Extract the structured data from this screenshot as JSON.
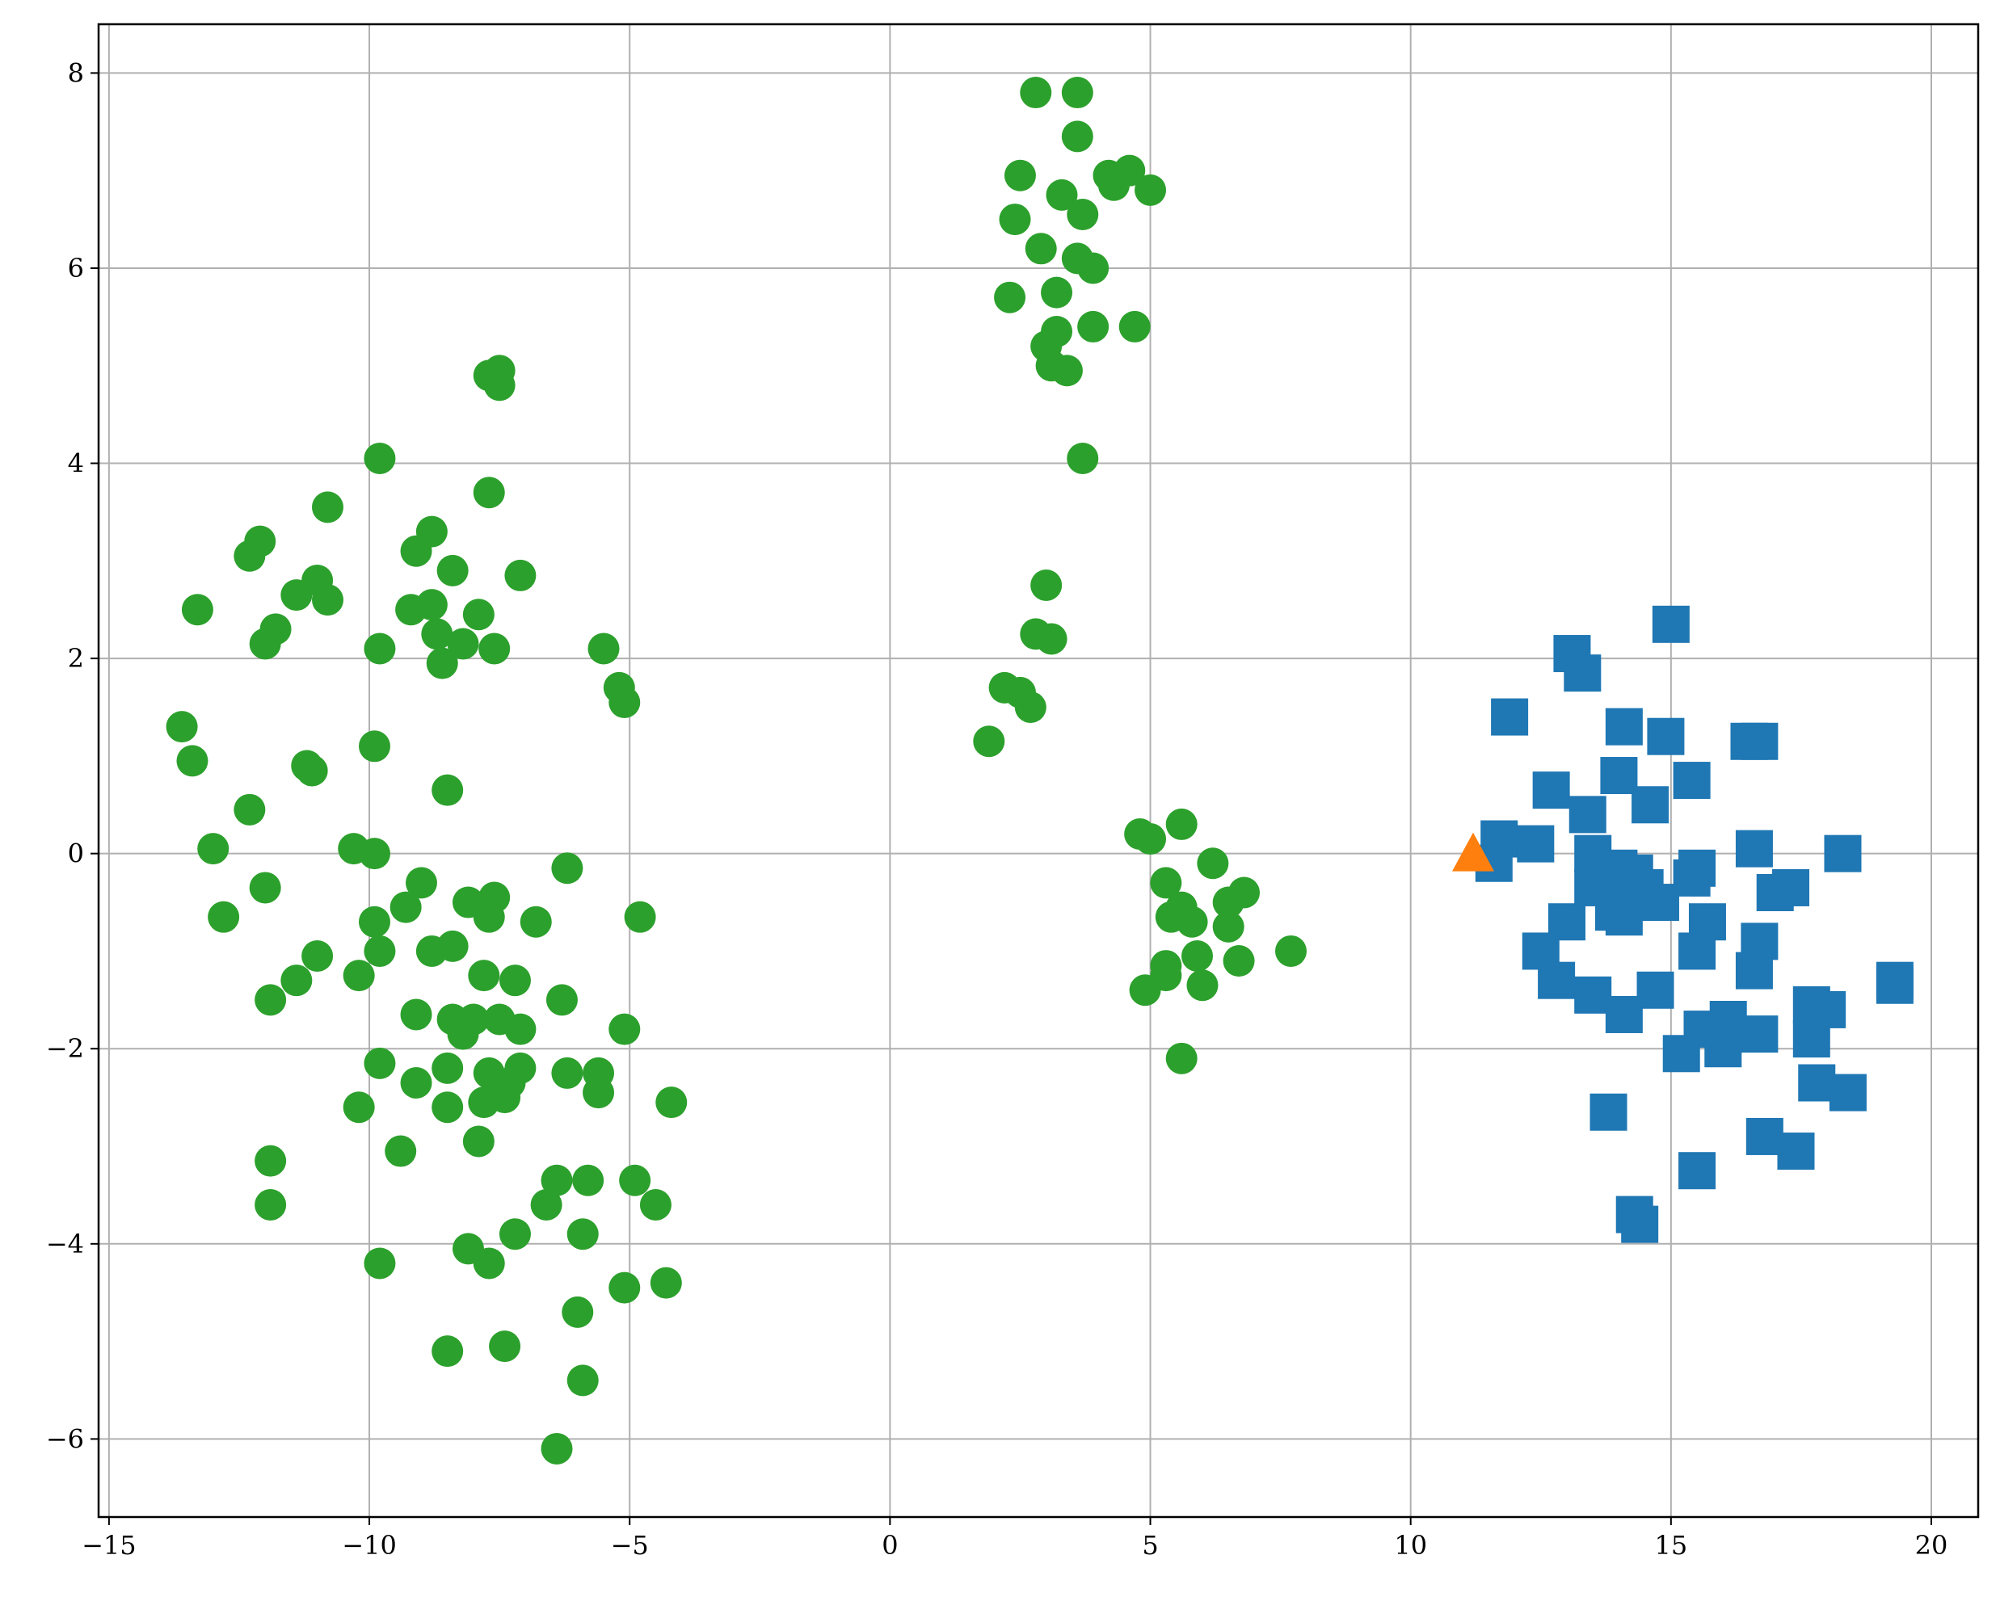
{
  "chart_data": {
    "type": "scatter",
    "title": "",
    "xlabel": "",
    "ylabel": "",
    "xlim": [
      -15.2,
      20.9
    ],
    "ylim": [
      -6.8,
      8.5
    ],
    "grid": true,
    "xticks": [
      -15,
      -10,
      -5,
      0,
      5,
      10,
      15,
      20
    ],
    "yticks": [
      -6,
      -4,
      -2,
      0,
      2,
      4,
      6,
      8
    ],
    "xtick_labels": [
      "−15",
      "−10",
      "−5",
      "0",
      "5",
      "10",
      "15",
      "20"
    ],
    "ytick_labels": [
      "−6",
      "−4",
      "−2",
      "0",
      "2",
      "4",
      "6",
      "8"
    ],
    "series": [
      {
        "marker": "circle",
        "color": "#2ca02c",
        "points": [
          [
            2.8,
            7.8
          ],
          [
            3.6,
            7.8
          ],
          [
            3.6,
            7.35
          ],
          [
            2.5,
            6.95
          ],
          [
            4.2,
            6.95
          ],
          [
            4.6,
            7.0
          ],
          [
            5.0,
            6.8
          ],
          [
            3.3,
            6.75
          ],
          [
            4.3,
            6.85
          ],
          [
            3.7,
            6.55
          ],
          [
            2.4,
            6.5
          ],
          [
            2.9,
            6.2
          ],
          [
            3.6,
            6.1
          ],
          [
            3.9,
            6.0
          ],
          [
            3.2,
            5.75
          ],
          [
            2.3,
            5.7
          ],
          [
            3.2,
            5.35
          ],
          [
            3.0,
            5.2
          ],
          [
            3.9,
            5.4
          ],
          [
            4.7,
            5.4
          ],
          [
            3.1,
            5.0
          ],
          [
            3.4,
            4.95
          ],
          [
            3.7,
            4.05
          ],
          [
            3.0,
            2.75
          ],
          [
            2.8,
            2.25
          ],
          [
            3.1,
            2.2
          ],
          [
            2.2,
            1.7
          ],
          [
            2.5,
            1.65
          ],
          [
            2.7,
            1.5
          ],
          [
            1.9,
            1.15
          ],
          [
            4.8,
            0.2
          ],
          [
            5.0,
            0.15
          ],
          [
            5.6,
            0.3
          ],
          [
            6.2,
            -0.1
          ],
          [
            5.3,
            -0.3
          ],
          [
            6.8,
            -0.4
          ],
          [
            6.5,
            -0.5
          ],
          [
            5.6,
            -0.55
          ],
          [
            5.4,
            -0.65
          ],
          [
            5.8,
            -0.7
          ],
          [
            6.5,
            -0.75
          ],
          [
            7.7,
            -1.0
          ],
          [
            5.9,
            -1.05
          ],
          [
            6.7,
            -1.1
          ],
          [
            5.3,
            -1.15
          ],
          [
            5.3,
            -1.25
          ],
          [
            6.0,
            -1.35
          ],
          [
            4.9,
            -1.4
          ],
          [
            5.6,
            -2.1
          ],
          [
            -7.5,
            4.95
          ],
          [
            -7.7,
            4.9
          ],
          [
            -7.5,
            4.8
          ],
          [
            -9.8,
            4.05
          ],
          [
            -7.7,
            3.7
          ],
          [
            -10.8,
            3.55
          ],
          [
            -12.1,
            3.2
          ],
          [
            -12.3,
            3.05
          ],
          [
            -8.8,
            3.3
          ],
          [
            -9.1,
            3.1
          ],
          [
            -8.4,
            2.9
          ],
          [
            -7.1,
            2.85
          ],
          [
            -11.0,
            2.8
          ],
          [
            -10.8,
            2.6
          ],
          [
            -11.4,
            2.65
          ],
          [
            -13.3,
            2.5
          ],
          [
            -8.8,
            2.55
          ],
          [
            -9.2,
            2.5
          ],
          [
            -7.9,
            2.45
          ],
          [
            -11.8,
            2.3
          ],
          [
            -12.0,
            2.15
          ],
          [
            -8.7,
            2.25
          ],
          [
            -8.2,
            2.15
          ],
          [
            -7.6,
            2.1
          ],
          [
            -9.8,
            2.1
          ],
          [
            -8.6,
            1.95
          ],
          [
            -5.5,
            2.1
          ],
          [
            -5.2,
            1.7
          ],
          [
            -5.1,
            1.55
          ],
          [
            -13.6,
            1.3
          ],
          [
            -9.9,
            1.1
          ],
          [
            -13.4,
            0.95
          ],
          [
            -11.2,
            0.9
          ],
          [
            -11.1,
            0.85
          ],
          [
            -8.5,
            0.65
          ],
          [
            -12.3,
            0.45
          ],
          [
            -13.0,
            0.05
          ],
          [
            -10.3,
            0.05
          ],
          [
            -9.9,
            0.0
          ],
          [
            -6.2,
            -0.15
          ],
          [
            -9.0,
            -0.3
          ],
          [
            -12.0,
            -0.35
          ],
          [
            -7.6,
            -0.45
          ],
          [
            -8.1,
            -0.5
          ],
          [
            -9.3,
            -0.55
          ],
          [
            -12.8,
            -0.65
          ],
          [
            -9.9,
            -0.7
          ],
          [
            -7.7,
            -0.65
          ],
          [
            -6.8,
            -0.7
          ],
          [
            -4.8,
            -0.65
          ],
          [
            -8.4,
            -0.95
          ],
          [
            -8.8,
            -1.0
          ],
          [
            -9.8,
            -1.0
          ],
          [
            -11.0,
            -1.05
          ],
          [
            -10.2,
            -1.25
          ],
          [
            -11.4,
            -1.3
          ],
          [
            -7.8,
            -1.25
          ],
          [
            -7.2,
            -1.3
          ],
          [
            -6.3,
            -1.5
          ],
          [
            -11.9,
            -1.5
          ],
          [
            -9.1,
            -1.65
          ],
          [
            -8.4,
            -1.7
          ],
          [
            -8.0,
            -1.7
          ],
          [
            -7.5,
            -1.7
          ],
          [
            -7.1,
            -1.8
          ],
          [
            -8.2,
            -1.85
          ],
          [
            -5.1,
            -1.8
          ],
          [
            -9.8,
            -2.15
          ],
          [
            -8.5,
            -2.2
          ],
          [
            -7.7,
            -2.25
          ],
          [
            -7.1,
            -2.2
          ],
          [
            -6.2,
            -2.25
          ],
          [
            -5.6,
            -2.25
          ],
          [
            -9.1,
            -2.35
          ],
          [
            -7.3,
            -2.35
          ],
          [
            -7.4,
            -2.5
          ],
          [
            -5.6,
            -2.45
          ],
          [
            -7.8,
            -2.55
          ],
          [
            -10.2,
            -2.6
          ],
          [
            -8.5,
            -2.6
          ],
          [
            -4.2,
            -2.55
          ],
          [
            -7.9,
            -2.95
          ],
          [
            -9.4,
            -3.05
          ],
          [
            -11.9,
            -3.15
          ],
          [
            -6.4,
            -3.35
          ],
          [
            -5.8,
            -3.35
          ],
          [
            -4.9,
            -3.35
          ],
          [
            -11.9,
            -3.6
          ],
          [
            -6.6,
            -3.6
          ],
          [
            -4.5,
            -3.6
          ],
          [
            -7.2,
            -3.9
          ],
          [
            -5.9,
            -3.9
          ],
          [
            -8.1,
            -4.05
          ],
          [
            -7.7,
            -4.2
          ],
          [
            -9.8,
            -4.2
          ],
          [
            -5.1,
            -4.45
          ],
          [
            -4.3,
            -4.4
          ],
          [
            -6.0,
            -4.7
          ],
          [
            -7.4,
            -5.05
          ],
          [
            -8.5,
            -5.1
          ],
          [
            -5.9,
            -5.4
          ],
          [
            -6.4,
            -6.1
          ]
        ]
      },
      {
        "marker": "square",
        "color": "#1f77b4",
        "points": [
          [
            15.0,
            2.35
          ],
          [
            13.1,
            2.05
          ],
          [
            13.3,
            1.85
          ],
          [
            11.9,
            1.4
          ],
          [
            14.1,
            1.3
          ],
          [
            14.9,
            1.2
          ],
          [
            16.5,
            1.15
          ],
          [
            16.7,
            1.15
          ],
          [
            14.0,
            0.8
          ],
          [
            15.4,
            0.75
          ],
          [
            12.7,
            0.65
          ],
          [
            14.6,
            0.5
          ],
          [
            13.4,
            0.4
          ],
          [
            11.7,
            0.15
          ],
          [
            12.4,
            0.1
          ],
          [
            16.6,
            0.05
          ],
          [
            18.3,
            0.0
          ],
          [
            13.5,
            0.0
          ],
          [
            11.6,
            -0.1
          ],
          [
            14.0,
            -0.15
          ],
          [
            15.5,
            -0.15
          ],
          [
            14.3,
            -0.2
          ],
          [
            13.6,
            -0.25
          ],
          [
            15.4,
            -0.25
          ],
          [
            13.5,
            -0.35
          ],
          [
            14.5,
            -0.35
          ],
          [
            13.9,
            -0.4
          ],
          [
            17.0,
            -0.4
          ],
          [
            17.3,
            -0.35
          ],
          [
            14.8,
            -0.5
          ],
          [
            13.9,
            -0.6
          ],
          [
            14.1,
            -0.65
          ],
          [
            13.0,
            -0.7
          ],
          [
            15.7,
            -0.7
          ],
          [
            16.7,
            -0.9
          ],
          [
            12.5,
            -1.0
          ],
          [
            15.5,
            -1.0
          ],
          [
            16.6,
            -1.2
          ],
          [
            12.8,
            -1.3
          ],
          [
            19.3,
            -1.3
          ],
          [
            19.3,
            -1.35
          ],
          [
            14.7,
            -1.4
          ],
          [
            13.5,
            -1.45
          ],
          [
            17.7,
            -1.55
          ],
          [
            18.0,
            -1.6
          ],
          [
            14.1,
            -1.65
          ],
          [
            16.1,
            -1.7
          ],
          [
            15.6,
            -1.8
          ],
          [
            16.7,
            -1.85
          ],
          [
            17.7,
            -1.9
          ],
          [
            16.0,
            -2.0
          ],
          [
            15.2,
            -2.05
          ],
          [
            17.8,
            -2.35
          ],
          [
            18.4,
            -2.45
          ],
          [
            13.8,
            -2.65
          ],
          [
            16.8,
            -2.9
          ],
          [
            17.4,
            -3.05
          ],
          [
            15.5,
            -3.25
          ],
          [
            14.3,
            -3.7
          ],
          [
            14.4,
            -3.8
          ]
        ]
      },
      {
        "marker": "triangle",
        "color": "#ff7f0e",
        "points": [
          [
            11.2,
            0.0
          ]
        ]
      }
    ]
  }
}
